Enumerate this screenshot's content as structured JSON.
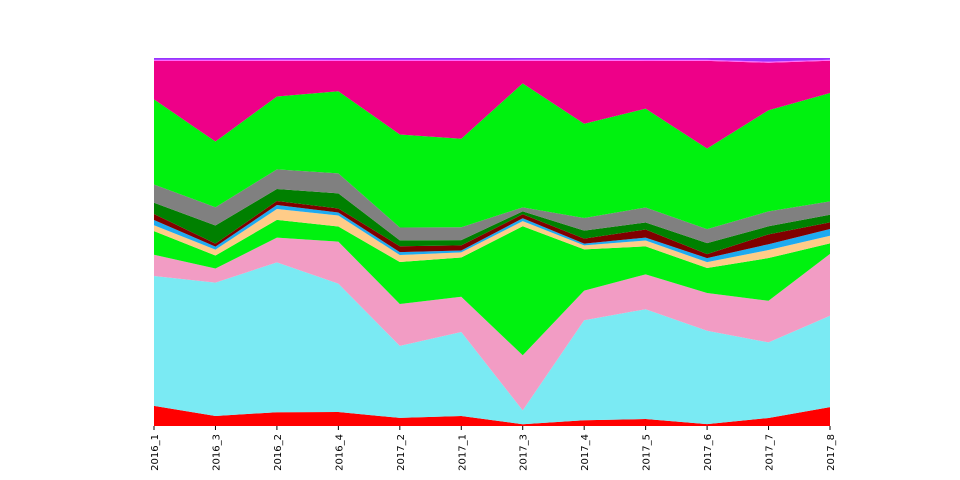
{
  "chart_data": {
    "type": "area",
    "stacked": true,
    "normalized": true,
    "grid": false,
    "legend": "none",
    "categories": [
      "2016_1",
      "2016_3",
      "2016_2",
      "2016_4",
      "2017_2",
      "2017_1",
      "2017_3",
      "2017_4",
      "2017_5",
      "2017_6",
      "2017_7",
      "2017_8"
    ],
    "ylim": [
      0,
      1
    ],
    "series": [
      {
        "color": "#ff0000",
        "values": [
          0.054,
          0.027,
          0.038,
          0.038,
          0.022,
          0.027,
          0.005,
          0.016,
          0.019,
          0.005,
          0.022,
          0.054
        ]
      },
      {
        "color": "#7aeaf3",
        "values": [
          0.348,
          0.359,
          0.413,
          0.348,
          0.196,
          0.227,
          0.038,
          0.277,
          0.299,
          0.255,
          0.207,
          0.261
        ]
      },
      {
        "color": "#f29cc4",
        "values": [
          0.057,
          0.038,
          0.068,
          0.114,
          0.114,
          0.095,
          0.152,
          0.082,
          0.095,
          0.103,
          0.114,
          0.177
        ]
      },
      {
        "color": "#00f20f",
        "values": [
          0.063,
          0.035,
          0.049,
          0.041,
          0.114,
          0.106,
          0.356,
          0.114,
          0.076,
          0.068,
          0.117,
          0.03
        ]
      },
      {
        "color": "#ffcc88",
        "values": [
          0.016,
          0.016,
          0.03,
          0.03,
          0.019,
          0.014,
          0.014,
          0.011,
          0.016,
          0.016,
          0.022,
          0.022
        ]
      },
      {
        "color": "#1eaaf0",
        "values": [
          0.014,
          0.008,
          0.011,
          0.008,
          0.008,
          0.005,
          0.008,
          0.005,
          0.008,
          0.011,
          0.016,
          0.019
        ]
      },
      {
        "color": "#800000",
        "values": [
          0.016,
          0.008,
          0.011,
          0.011,
          0.016,
          0.014,
          0.011,
          0.014,
          0.022,
          0.011,
          0.027,
          0.019
        ]
      },
      {
        "color": "#008000",
        "values": [
          0.03,
          0.049,
          0.033,
          0.041,
          0.016,
          0.014,
          0.008,
          0.022,
          0.019,
          0.03,
          0.022,
          0.022
        ]
      },
      {
        "color": "#808080",
        "values": [
          0.049,
          0.049,
          0.054,
          0.054,
          0.035,
          0.035,
          0.011,
          0.035,
          0.041,
          0.038,
          0.041,
          0.038
        ]
      },
      {
        "color": "#00f20f",
        "values": [
          0.228,
          0.177,
          0.201,
          0.223,
          0.253,
          0.239,
          0.342,
          0.261,
          0.269,
          0.22,
          0.277,
          0.31
        ]
      },
      {
        "color": "#ee0088",
        "values": [
          0.103,
          0.217,
          0.098,
          0.082,
          0.2,
          0.21,
          0.062,
          0.174,
          0.13,
          0.239,
          0.13,
          0.092
        ]
      },
      {
        "color": "#ff66ff",
        "values": [
          0.003,
          0.003,
          0.003,
          0.003,
          0.003,
          0.003,
          0.003,
          0.003,
          0.003,
          0.003,
          0.003,
          0.003
        ]
      },
      {
        "color": "#9933ff",
        "values": [
          0.005,
          0.005,
          0.005,
          0.005,
          0.005,
          0.005,
          0.005,
          0.005,
          0.005,
          0.005,
          0.01,
          0.005
        ]
      }
    ]
  }
}
